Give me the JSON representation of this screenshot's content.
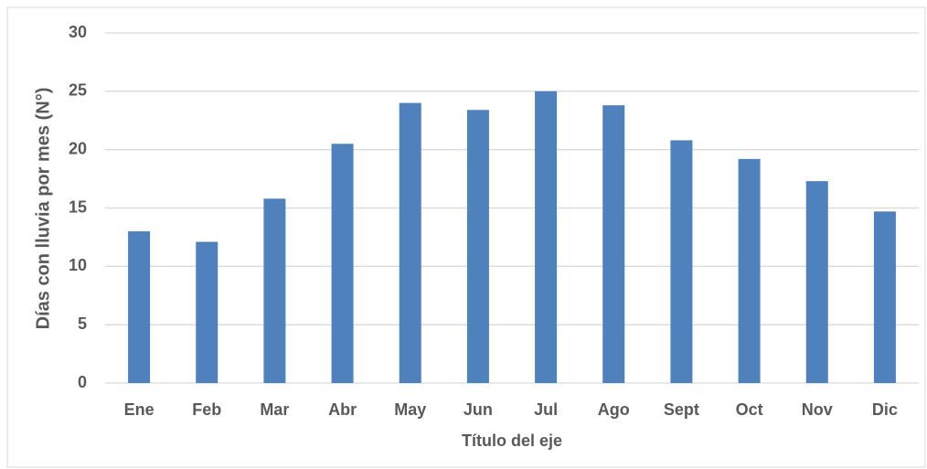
{
  "chart_data": {
    "type": "bar",
    "x_label": "Título del eje",
    "y_label": "Días con lluvia por mes (N°)",
    "categories": [
      "Ene",
      "Feb",
      "Mar",
      "Abr",
      "May",
      "Jun",
      "Jul",
      "Ago",
      "Sept",
      "Oct",
      "Nov",
      "Dic"
    ],
    "values": [
      13,
      12.1,
      15.8,
      20.5,
      24,
      23.4,
      25,
      23.8,
      20.8,
      19.2,
      17.3,
      14.7
    ],
    "color": "#4f81bd",
    "ylim": [
      0,
      30
    ],
    "yticks": [
      0,
      5,
      10,
      15,
      20,
      25,
      30
    ],
    "grid": true
  }
}
